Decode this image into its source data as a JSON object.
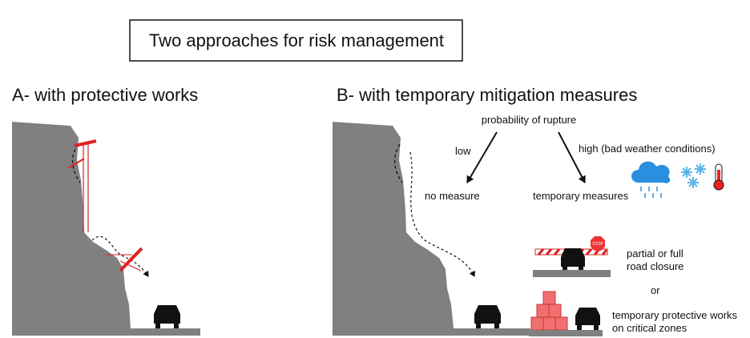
{
  "header": {
    "title": "Two approaches for risk management"
  },
  "panel_a": {
    "title": "A- with protective works"
  },
  "panel_b": {
    "title": "B- with temporary mitigation measures",
    "root": "probability of rupture",
    "low": {
      "label": "low",
      "outcome": "no measure"
    },
    "high": {
      "label": "high (bad weather conditions)",
      "outcome": "temporary measures"
    },
    "stop_sign": "STOP",
    "measures": [
      {
        "lines": [
          "partial or full",
          "road closure"
        ]
      },
      {
        "lines": [
          "temporary protective works",
          "on critical zones"
        ]
      }
    ],
    "separator": "or"
  }
}
